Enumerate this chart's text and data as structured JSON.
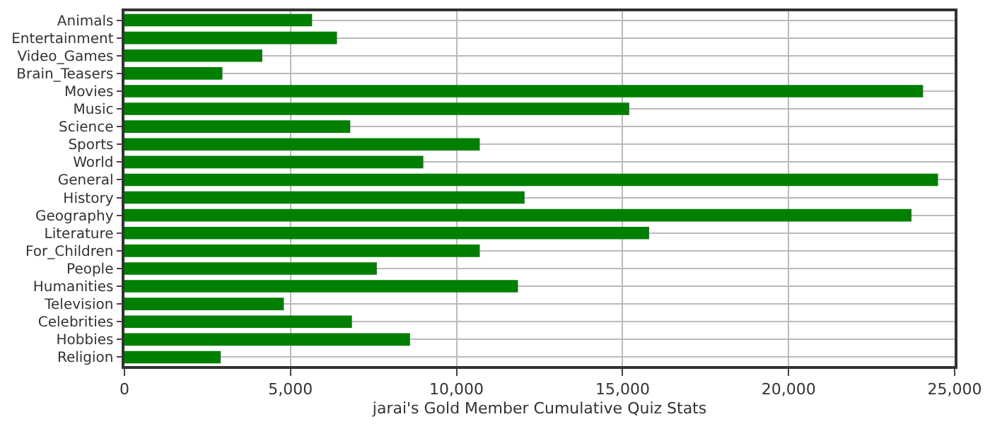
{
  "chart_data": {
    "type": "bar",
    "orientation": "horizontal",
    "xlabel": "jarai's Gold Member Cumulative Quiz Stats",
    "categories": [
      "Animals",
      "Entertainment",
      "Video_Games",
      "Brain_Teasers",
      "Movies",
      "Music",
      "Science",
      "Sports",
      "World",
      "General",
      "History",
      "Geography",
      "Literature",
      "For_Children",
      "People",
      "Humanities",
      "Television",
      "Celebrities",
      "Hobbies",
      "Religion"
    ],
    "values": [
      5650,
      6400,
      4150,
      2950,
      24050,
      15200,
      6800,
      10700,
      9000,
      24500,
      12050,
      23700,
      15800,
      10700,
      7600,
      11850,
      4800,
      6850,
      8600,
      2900
    ],
    "color": "#007f00",
    "xlim": [
      0,
      25000
    ],
    "xticks": [
      {
        "value": 0,
        "label": "0"
      },
      {
        "value": 5000,
        "label": "5,000"
      },
      {
        "value": 10000,
        "label": "10,000"
      },
      {
        "value": 15000,
        "label": "15,000"
      },
      {
        "value": 20000,
        "label": "20,000"
      },
      {
        "value": 25000,
        "label": "25,000"
      }
    ],
    "grid": true
  }
}
